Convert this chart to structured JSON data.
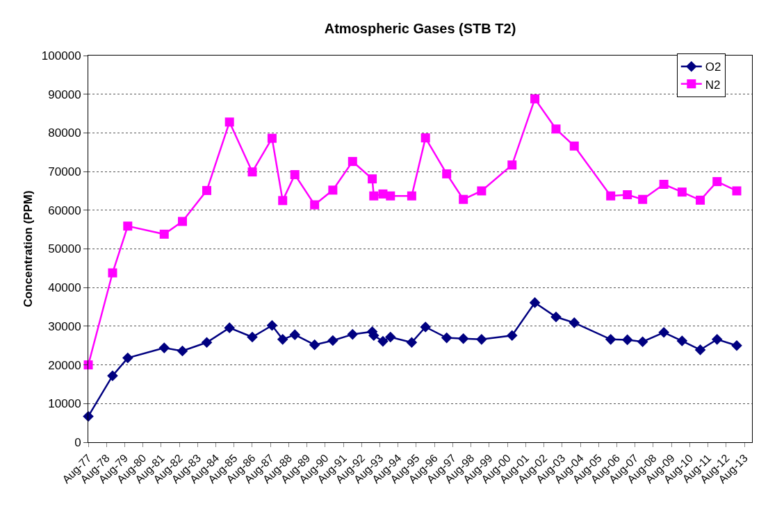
{
  "chart_data": {
    "type": "line",
    "title": "Atmospheric Gases (STB T2)",
    "ylabel": "Concentration (PPM)",
    "x": [
      "1977-08",
      "1978-12",
      "1979-10",
      "1981-10",
      "1982-10",
      "1984-02",
      "1985-05",
      "1986-08",
      "1987-09",
      "1988-04",
      "1988-12",
      "1990-01",
      "1991-01",
      "1992-02",
      "1993-03",
      "1993-04",
      "1993-10",
      "1994-03",
      "1995-05",
      "1996-02",
      "1997-04",
      "1998-03",
      "1999-03",
      "2000-11",
      "2002-02",
      "2003-04",
      "2004-04",
      "2006-04",
      "2007-03",
      "2008-01",
      "2009-03",
      "2010-03",
      "2011-03",
      "2012-02",
      "2013-03"
    ],
    "series": [
      {
        "name": "O2",
        "color": "#000080",
        "marker": "diamond",
        "values": [
          6700,
          17200,
          21800,
          24400,
          23600,
          25800,
          29600,
          27200,
          30200,
          26600,
          27800,
          25200,
          26300,
          27900,
          28600,
          27600,
          26100,
          27200,
          25800,
          29800,
          27000,
          26800,
          26600,
          27600,
          36100,
          32400,
          30900,
          26600,
          26500,
          26000,
          28400,
          26200,
          23900,
          26600,
          25000
        ]
      },
      {
        "name": "N2",
        "color": "#ff00ff",
        "marker": "square",
        "values": [
          20000,
          43800,
          55900,
          53800,
          57100,
          65100,
          82800,
          69900,
          78600,
          62500,
          69200,
          61400,
          65200,
          72600,
          68100,
          63700,
          64200,
          63700,
          63700,
          78700,
          69400,
          62800,
          65000,
          71700,
          88800,
          81000,
          76600,
          63700,
          64000,
          62800,
          66700,
          64700,
          62600,
          67400,
          65000
        ]
      }
    ],
    "xlim": [
      "1977-08",
      "2014-01"
    ],
    "xticks": [
      {
        "value": "1977-08",
        "label": "Aug-77"
      },
      {
        "value": "1978-08",
        "label": "Aug-78"
      },
      {
        "value": "1979-08",
        "label": "Aug-79"
      },
      {
        "value": "1980-08",
        "label": "Aug-80"
      },
      {
        "value": "1981-08",
        "label": "Aug-81"
      },
      {
        "value": "1982-08",
        "label": "Aug-82"
      },
      {
        "value": "1983-08",
        "label": "Aug-83"
      },
      {
        "value": "1984-08",
        "label": "Aug-84"
      },
      {
        "value": "1985-08",
        "label": "Aug-85"
      },
      {
        "value": "1986-08",
        "label": "Aug-86"
      },
      {
        "value": "1987-08",
        "label": "Aug-87"
      },
      {
        "value": "1988-08",
        "label": "Aug-88"
      },
      {
        "value": "1989-08",
        "label": "Aug-89"
      },
      {
        "value": "1990-08",
        "label": "Aug-90"
      },
      {
        "value": "1991-08",
        "label": "Aug-91"
      },
      {
        "value": "1992-08",
        "label": "Aug-92"
      },
      {
        "value": "1993-08",
        "label": "Aug-93"
      },
      {
        "value": "1994-08",
        "label": "Aug-94"
      },
      {
        "value": "1995-08",
        "label": "Aug-95"
      },
      {
        "value": "1996-08",
        "label": "Aug-96"
      },
      {
        "value": "1997-08",
        "label": "Aug-97"
      },
      {
        "value": "1998-08",
        "label": "Aug-98"
      },
      {
        "value": "1999-08",
        "label": "Aug-99"
      },
      {
        "value": "2000-08",
        "label": "Aug-00"
      },
      {
        "value": "2001-08",
        "label": "Aug-01"
      },
      {
        "value": "2002-08",
        "label": "Aug-02"
      },
      {
        "value": "2003-08",
        "label": "Aug-03"
      },
      {
        "value": "2004-08",
        "label": "Aug-04"
      },
      {
        "value": "2005-08",
        "label": "Aug-05"
      },
      {
        "value": "2006-08",
        "label": "Aug-06"
      },
      {
        "value": "2007-08",
        "label": "Aug-07"
      },
      {
        "value": "2008-08",
        "label": "Aug-08"
      },
      {
        "value": "2009-08",
        "label": "Aug-09"
      },
      {
        "value": "2010-08",
        "label": "Aug-10"
      },
      {
        "value": "2011-08",
        "label": "Aug-11"
      },
      {
        "value": "2012-08",
        "label": "Aug-12"
      },
      {
        "value": "2013-08",
        "label": "Aug-13"
      }
    ],
    "ylim": [
      0,
      100000
    ],
    "yticks": [
      0,
      10000,
      20000,
      30000,
      40000,
      50000,
      60000,
      70000,
      80000,
      90000,
      100000
    ],
    "grid": "y",
    "legend": "top right",
    "line_style": "solid"
  }
}
